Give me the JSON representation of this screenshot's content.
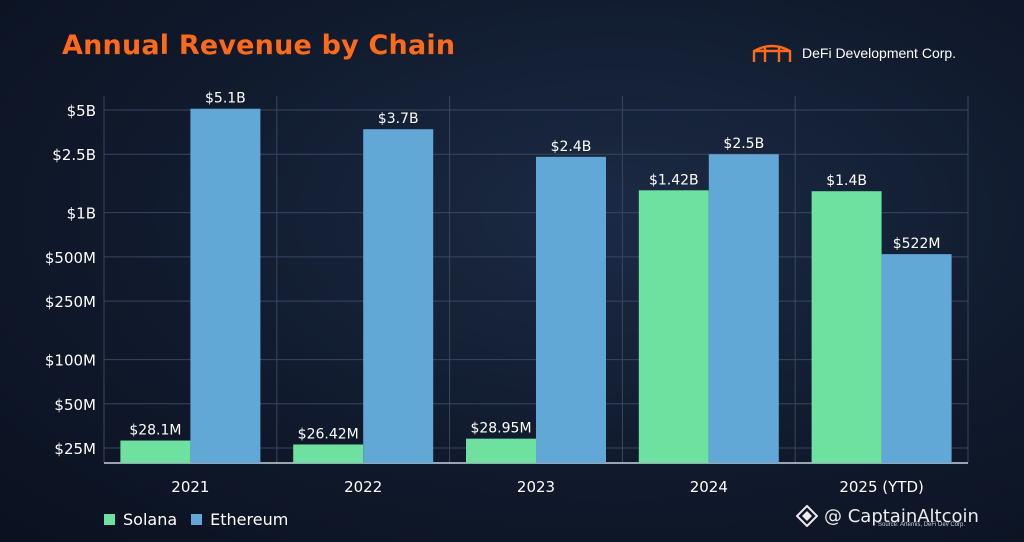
{
  "header": {
    "title": "Annual Revenue by Chain",
    "brand": "DeFi Development Corp."
  },
  "colors": {
    "title": "#ff6a1a",
    "solana": "#6ee0a0",
    "ethereum": "#62a8d6",
    "grid": "#3a4660"
  },
  "chart_data": {
    "type": "bar",
    "title": "Annual Revenue by Chain",
    "xlabel": "",
    "ylabel": "",
    "scale": "log",
    "categories": [
      "2021",
      "2022",
      "2023",
      "2024",
      "2025 (YTD)"
    ],
    "series": [
      {
        "name": "Solana",
        "values": [
          28100000,
          26420000,
          28950000,
          1420000000,
          1400000000
        ],
        "labels": [
          "$28.1M",
          "$26.42M",
          "$28.95M",
          "$1.42B",
          "$1.4B"
        ]
      },
      {
        "name": "Ethereum",
        "values": [
          5100000000,
          3700000000,
          2400000000,
          2500000000,
          522000000
        ],
        "labels": [
          "$5.1B",
          "$3.7B",
          "$2.4B",
          "$2.5B",
          "$522M"
        ]
      }
    ],
    "yticks": [
      {
        "value": 25000000,
        "label": "$25M"
      },
      {
        "value": 50000000,
        "label": "$50M"
      },
      {
        "value": 100000000,
        "label": "$100M"
      },
      {
        "value": 250000000,
        "label": "$250M"
      },
      {
        "value": 500000000,
        "label": "$500M"
      },
      {
        "value": 1000000000,
        "label": "$1B"
      },
      {
        "value": 2500000000,
        "label": "$2.5B"
      },
      {
        "value": 5000000000,
        "label": "$5B"
      }
    ],
    "grid": true,
    "legend_position": "bottom-left"
  },
  "footer": {
    "source": "Source: Artemis, DeFi Dev Corp.",
    "watermark": "@ CaptainAltcoin"
  }
}
